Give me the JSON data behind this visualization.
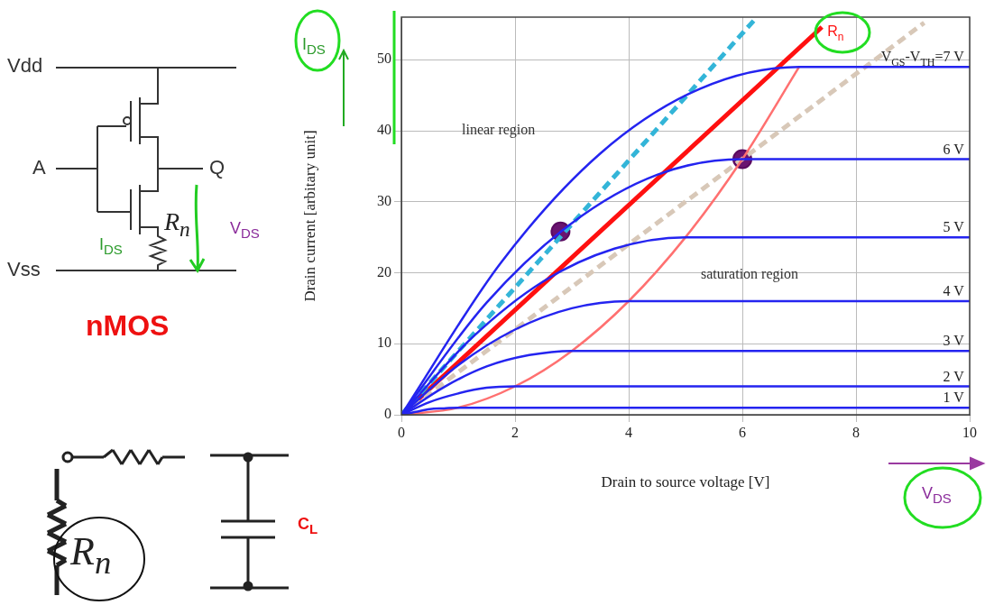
{
  "chart_data": {
    "type": "line",
    "xlabel": "Drain to source voltage [V]",
    "ylabel": "Drain current [arbitary unit]",
    "xlim": [
      0,
      10
    ],
    "xticks": [
      0,
      2,
      4,
      6,
      8,
      10
    ],
    "ylim": [
      0,
      56
    ],
    "yticks": [
      0,
      10,
      20,
      30,
      40,
      50
    ],
    "grid": true,
    "legend": false,
    "marker": "none",
    "series": [
      {
        "name": "1 V",
        "color": "#2424f0",
        "x": [
          0,
          0.25,
          0.5,
          0.75,
          1,
          10
        ],
        "values": [
          0,
          0.4,
          0.8,
          0.9,
          1,
          1
        ]
      },
      {
        "name": "2 V",
        "color": "#2424f0",
        "x": [
          0,
          0.5,
          1,
          1.5,
          2,
          10
        ],
        "values": [
          0,
          1.8,
          3,
          3.8,
          4,
          4
        ]
      },
      {
        "name": "3 V",
        "color": "#2424f0",
        "x": [
          0,
          0.75,
          1.5,
          2.25,
          3,
          10
        ],
        "values": [
          0,
          3.9,
          6.8,
          8.4,
          9,
          9
        ]
      },
      {
        "name": "4 V",
        "color": "#2424f0",
        "x": [
          0,
          1,
          2,
          3,
          4,
          10
        ],
        "values": [
          0,
          7,
          12,
          15,
          16,
          16
        ]
      },
      {
        "name": "5 V",
        "color": "#2424f0",
        "x": [
          0,
          1.25,
          2.5,
          3.75,
          5,
          10
        ],
        "values": [
          0,
          10.9,
          18.8,
          23.4,
          25,
          25
        ]
      },
      {
        "name": "6 V",
        "color": "#2424f0",
        "x": [
          0,
          1.5,
          3,
          4.5,
          6,
          10
        ],
        "values": [
          0,
          15.8,
          27,
          33.8,
          36,
          36
        ]
      },
      {
        "name": "V$_{GS}$-V$_{TH}$=7 V",
        "color": "#2424f0",
        "x": [
          0,
          1.75,
          3.5,
          5.25,
          7,
          10
        ],
        "values": [
          0,
          21.4,
          36.8,
          45.9,
          49,
          49
        ]
      },
      {
        "color": "#ff7070",
        "x": [
          0,
          1,
          2,
          3,
          4,
          5,
          6,
          7
        ],
        "values": [
          0,
          1,
          4,
          9,
          16,
          25,
          36,
          49
        ]
      },
      {
        "color": "#d8c8b8",
        "line_style": "dashed",
        "x": [
          0,
          9.2
        ],
        "values": [
          0,
          55.2
        ]
      },
      {
        "color": "#33b5d8",
        "line_style": "dashed",
        "x": [
          0,
          6.2
        ],
        "values": [
          0,
          55.5
        ]
      },
      {
        "name": "R$_{n}$",
        "color": "#ff1010",
        "x": [
          0,
          7.4
        ],
        "values": [
          0,
          54.6
        ]
      },
      {
        "type": "scatter",
        "marker": "circle",
        "color": "#6a1470",
        "x": [
          2.8,
          6
        ],
        "values": [
          25.8,
          36
        ]
      }
    ],
    "annotations": [
      "Vdd",
      "A",
      "Q",
      "Vss",
      "I$_{DS}$",
      "R$_{n}$",
      "V$_{DS}$",
      "nMOS",
      "R$_{n}$",
      "C$_{L}$",
      "I$_{DS}$",
      "V$_{DS}$",
      "linear region",
      "saturation region"
    ]
  }
}
